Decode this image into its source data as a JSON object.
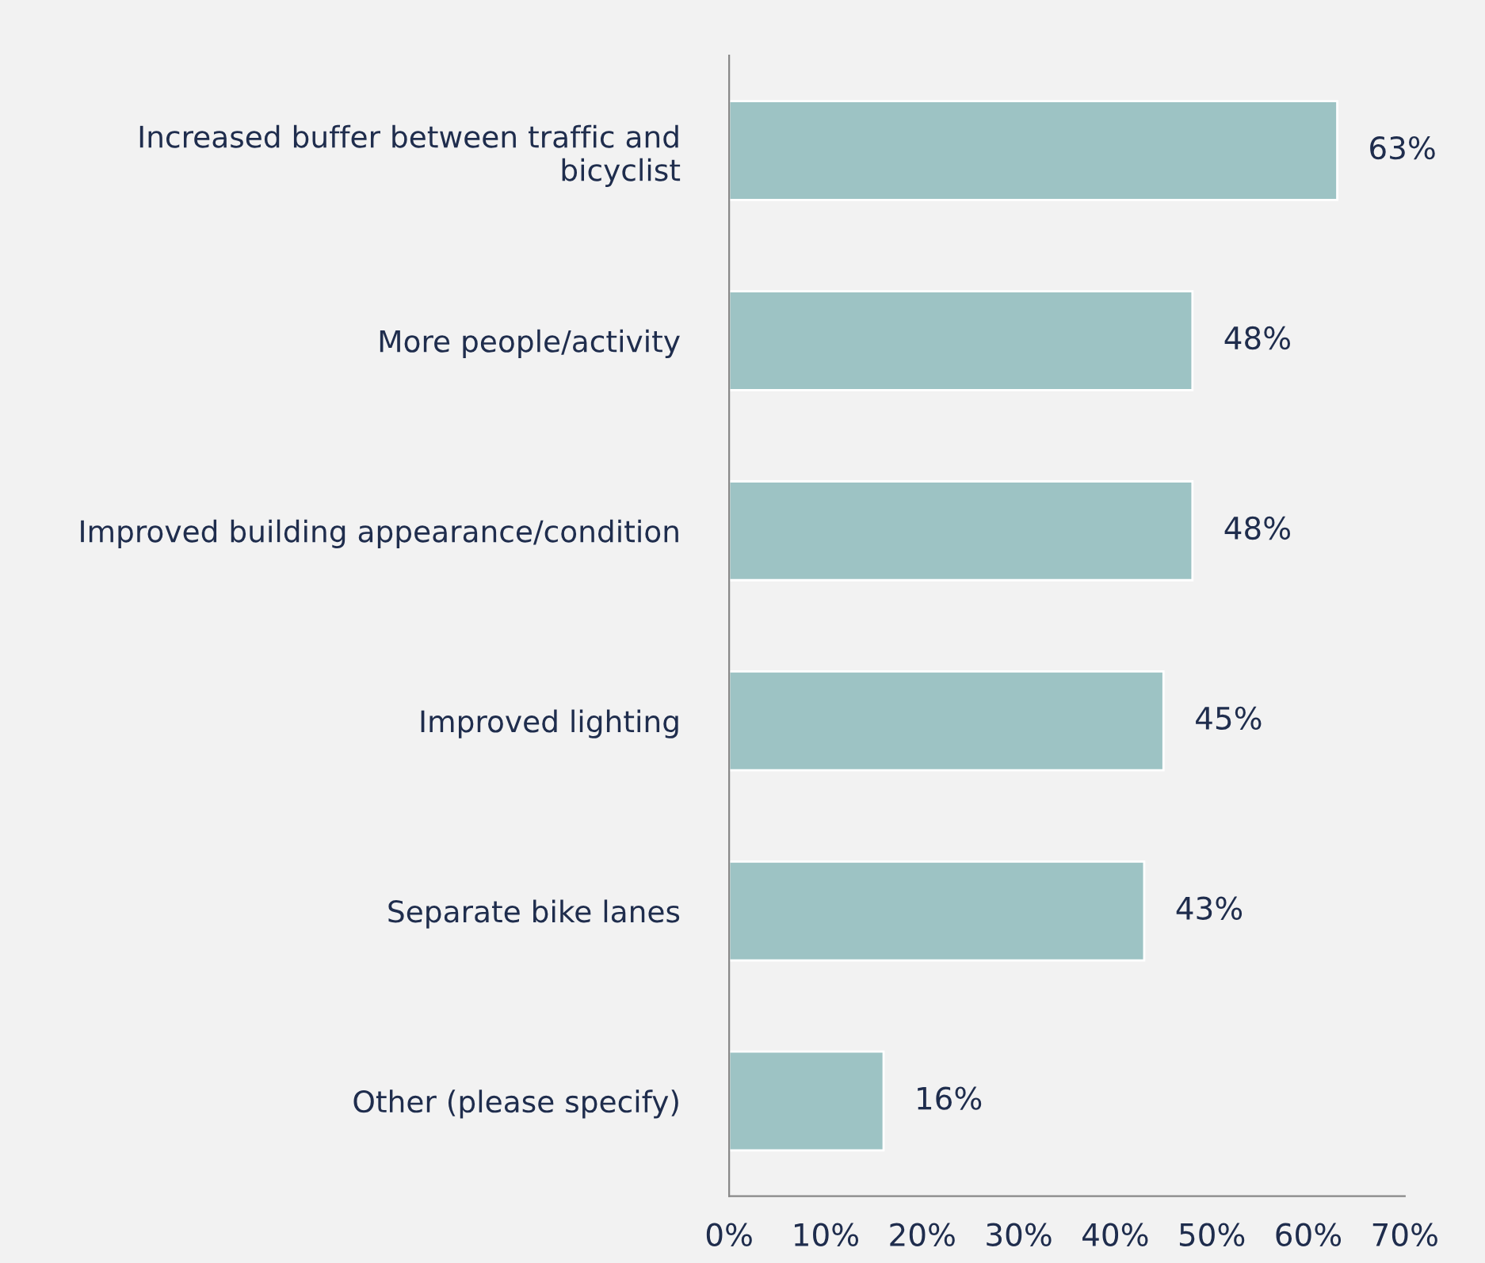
{
  "chart_data": {
    "type": "bar",
    "orientation": "horizontal",
    "categories": [
      "Increased buffer between traffic and\nbicyclist",
      "More people/activity",
      "Improved building appearance/condition",
      "Improved lighting",
      "Separate bike lanes",
      "Other (please specify)"
    ],
    "values": [
      63,
      48,
      48,
      45,
      43,
      16
    ],
    "value_labels": [
      "63%",
      "48%",
      "48%",
      "45%",
      "43%",
      "16%"
    ],
    "color": "#9dc3c4",
    "xlim": [
      0,
      70
    ],
    "xticks": [
      {
        "value": 0,
        "label": "0%"
      },
      {
        "value": 10,
        "label": "10%"
      },
      {
        "value": 20,
        "label": "20%"
      },
      {
        "value": 30,
        "label": "30%"
      },
      {
        "value": 40,
        "label": "40%"
      },
      {
        "value": 50,
        "label": "50%"
      },
      {
        "value": 60,
        "label": "60%"
      },
      {
        "value": 70,
        "label": "70%"
      }
    ],
    "grid": false,
    "legend": false
  }
}
